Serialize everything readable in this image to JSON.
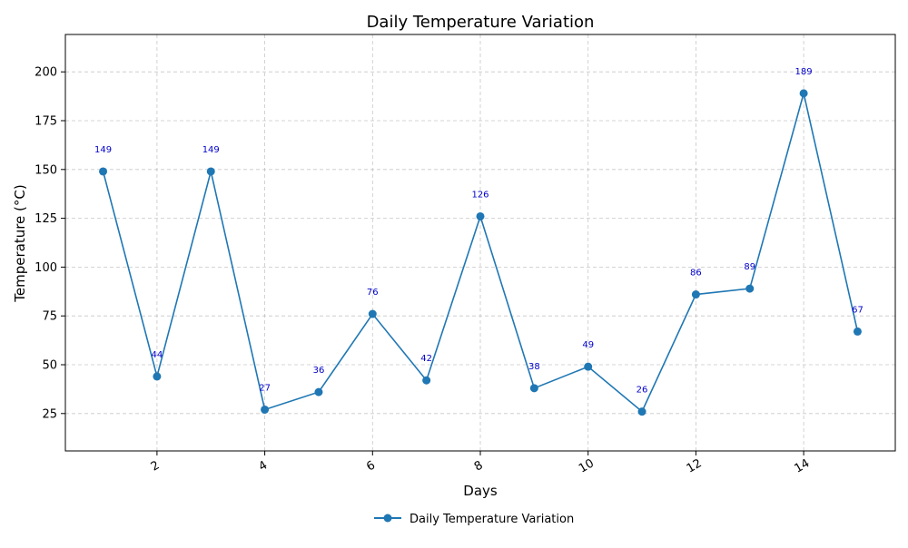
{
  "chart_data": {
    "type": "line",
    "title": "Daily Temperature Variation",
    "xlabel": "Days",
    "ylabel": "Temperature (°C)",
    "x": [
      1,
      2,
      3,
      4,
      5,
      6,
      7,
      8,
      9,
      10,
      11,
      12,
      13,
      14,
      15
    ],
    "series": [
      {
        "name": "Daily Temperature Variation",
        "values": [
          149,
          44,
          149,
          27,
          36,
          76,
          42,
          126,
          38,
          49,
          26,
          86,
          89,
          189,
          67
        ],
        "color": "#1f77b4",
        "marker": "circle"
      }
    ],
    "xlim": [
      0.3,
      15.7
    ],
    "ylim": [
      5.85,
      219.15
    ],
    "xticks": [
      2,
      4,
      6,
      8,
      10,
      12,
      14
    ],
    "yticks": [
      25,
      50,
      75,
      100,
      125,
      150,
      175,
      200
    ],
    "xtick_rotation": -30,
    "grid": true,
    "legend": {
      "placement": "bottom-center",
      "entries": [
        "Daily Temperature Variation"
      ]
    },
    "data_labels_color": "#0000cc"
  }
}
